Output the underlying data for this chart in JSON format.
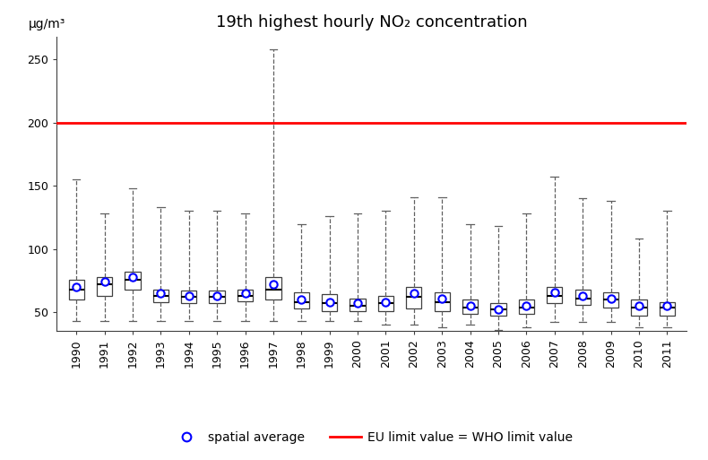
{
  "title": "19th highest hourly NO₂ concentration",
  "ylabel_text": "μg/m³",
  "years": [
    1990,
    1991,
    1992,
    1993,
    1994,
    1995,
    1996,
    1997,
    1998,
    1999,
    2000,
    2001,
    2002,
    2003,
    2004,
    2005,
    2006,
    2007,
    2008,
    2009,
    2010,
    2011
  ],
  "ylim": [
    35,
    268
  ],
  "yticks": [
    50,
    100,
    150,
    200,
    250
  ],
  "eu_limit": 200,
  "box_data": {
    "whislo": [
      43,
      43,
      43,
      43,
      43,
      43,
      43,
      43,
      43,
      43,
      43,
      40,
      40,
      38,
      40,
      36,
      38,
      42,
      42,
      42,
      38,
      38
    ],
    "q1": [
      60,
      63,
      68,
      58,
      57,
      57,
      59,
      60,
      53,
      51,
      51,
      51,
      53,
      51,
      49,
      47,
      49,
      57,
      56,
      54,
      47,
      47
    ],
    "med": [
      68,
      72,
      76,
      63,
      62,
      62,
      63,
      68,
      58,
      57,
      55,
      57,
      62,
      58,
      54,
      52,
      54,
      63,
      61,
      60,
      54,
      54
    ],
    "q3": [
      76,
      78,
      82,
      68,
      67,
      67,
      68,
      78,
      66,
      64,
      61,
      63,
      70,
      66,
      60,
      57,
      60,
      70,
      68,
      66,
      60,
      58
    ],
    "whishi": [
      155,
      128,
      148,
      133,
      130,
      130,
      128,
      258,
      120,
      126,
      128,
      130,
      141,
      141,
      120,
      118,
      128,
      157,
      140,
      138,
      108,
      130
    ],
    "mean": [
      70,
      74,
      78,
      65,
      63,
      63,
      65,
      72,
      60,
      58,
      57,
      58,
      65,
      61,
      55,
      52,
      55,
      66,
      63,
      61,
      55,
      55
    ]
  },
  "box_facecolor": "white",
  "box_edgecolor": "#404040",
  "median_color": "#000000",
  "whisker_color": "#606060",
  "cap_color": "#606060",
  "mean_marker_facecolor": "white",
  "mean_marker_edgecolor": "blue",
  "eu_line_color": "red",
  "background_color": "white",
  "legend_label_mean": "spatial average",
  "legend_label_eu": "EU limit value = WHO limit value",
  "title_fontsize": 13,
  "tick_fontsize": 9,
  "legend_fontsize": 10
}
